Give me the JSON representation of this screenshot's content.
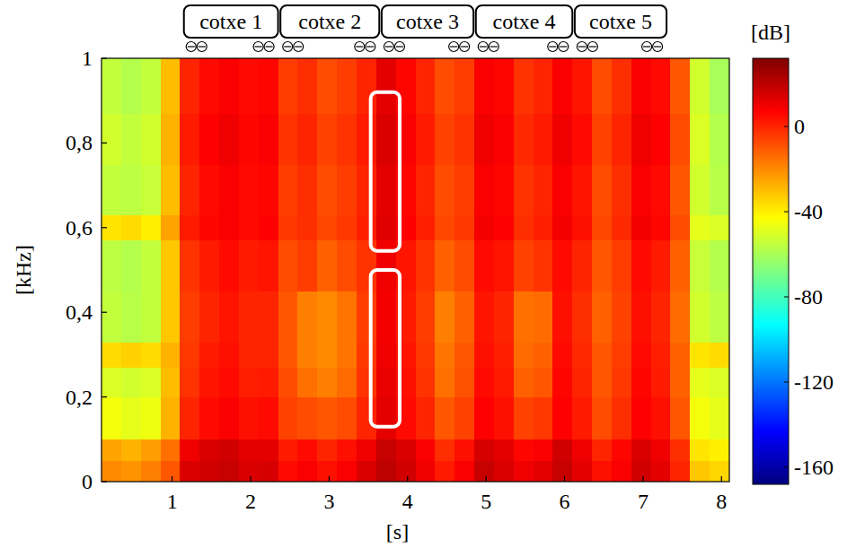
{
  "chart_data": {
    "type": "heatmap",
    "x_label": "[s]",
    "y_label": "[kHz]",
    "xlim": [
      0.1,
      8.1
    ],
    "ylim": [
      0,
      1
    ],
    "xticks": [
      1,
      2,
      3,
      4,
      5,
      6,
      7,
      8
    ],
    "yticks": [
      0,
      {
        "value": 0.2,
        "label": "0,2"
      },
      {
        "value": 0.4,
        "label": "0,4"
      },
      {
        "value": 0.6,
        "label": "0,6"
      },
      {
        "value": 0.8,
        "label": "0,8"
      },
      1
    ],
    "x_edges": [
      0.1,
      0.35,
      0.6,
      0.85,
      1.1,
      1.35,
      1.6,
      1.85,
      2.1,
      2.35,
      2.6,
      2.85,
      3.1,
      3.35,
      3.6,
      3.85,
      4.1,
      4.35,
      4.6,
      4.85,
      5.1,
      5.35,
      5.6,
      5.85,
      6.1,
      6.35,
      6.6,
      6.85,
      7.1,
      7.35,
      7.6,
      7.85,
      8.1
    ],
    "y_edges": [
      0,
      0.05,
      0.1,
      0.2,
      0.27,
      0.33,
      0.45,
      0.57,
      0.63,
      0.75,
      0.87,
      1.0
    ],
    "cells": [
      [
        -20,
        -22,
        -18,
        -10,
        14,
        16,
        18,
        14,
        15,
        5,
        8,
        4,
        8,
        14,
        20,
        16,
        10,
        2,
        8,
        18,
        14,
        10,
        12,
        18,
        12,
        4,
        8,
        16,
        12,
        0,
        -32,
        -35
      ],
      [
        -25,
        -28,
        -24,
        -15,
        10,
        14,
        16,
        12,
        12,
        2,
        5,
        0,
        4,
        10,
        18,
        14,
        8,
        -2,
        4,
        15,
        12,
        6,
        8,
        16,
        10,
        0,
        6,
        14,
        10,
        -2,
        -38,
        -40
      ],
      [
        -45,
        -48,
        -46,
        -28,
        0,
        5,
        8,
        4,
        5,
        -6,
        -8,
        -10,
        -8,
        0,
        12,
        5,
        0,
        -10,
        -6,
        7,
        4,
        -6,
        -4,
        7,
        2,
        -8,
        -2,
        7,
        4,
        -10,
        -45,
        -48
      ],
      [
        -50,
        -52,
        -50,
        -30,
        -3,
        3,
        5,
        1,
        2,
        -8,
        -15,
        -18,
        -14,
        -3,
        11,
        4,
        -3,
        -15,
        -9,
        5,
        2,
        -12,
        -10,
        6,
        0,
        -10,
        -4,
        6,
        2,
        -12,
        -48,
        -50
      ],
      [
        -36,
        -34,
        -36,
        -28,
        -4,
        2,
        4,
        0,
        0,
        -10,
        -18,
        -20,
        -16,
        -4,
        10,
        3,
        -4,
        -16,
        -10,
        4,
        1,
        -14,
        -12,
        5,
        -1,
        -10,
        -5,
        5,
        1,
        -12,
        -38,
        -36
      ],
      [
        -55,
        -57,
        -55,
        -32,
        -5,
        0,
        3,
        0,
        0,
        -10,
        -18,
        -20,
        -16,
        -5,
        9,
        2,
        -5,
        -18,
        -12,
        3,
        0,
        -15,
        -14,
        4,
        -2,
        -12,
        -6,
        4,
        0,
        -14,
        -52,
        -56
      ],
      [
        -56,
        -58,
        -55,
        -32,
        -3,
        2,
        5,
        2,
        3,
        -8,
        -5,
        -12,
        -8,
        -3,
        10,
        3,
        -3,
        -12,
        -8,
        5,
        3,
        -6,
        -3,
        5,
        0,
        -10,
        -5,
        5,
        2,
        -12,
        -54,
        -58
      ],
      [
        -38,
        -36,
        -40,
        -25,
        2,
        6,
        8,
        5,
        7,
        -4,
        -2,
        -7,
        -4,
        1,
        13,
        7,
        1,
        -7,
        -4,
        9,
        7,
        -2,
        1,
        9,
        4,
        -7,
        -1,
        9,
        6,
        -8,
        -48,
        -50
      ],
      [
        -55,
        -56,
        -54,
        -30,
        0,
        5,
        8,
        5,
        6,
        -5,
        -2,
        -8,
        -5,
        0,
        12,
        6,
        0,
        -8,
        -5,
        8,
        6,
        -3,
        0,
        8,
        3,
        -8,
        -2,
        8,
        5,
        -10,
        -52,
        -57
      ],
      [
        -52,
        -55,
        -52,
        -28,
        2,
        7,
        10,
        6,
        8,
        -3,
        0,
        -6,
        -3,
        2,
        14,
        8,
        2,
        -6,
        -3,
        10,
        8,
        -1,
        2,
        10,
        5,
        -6,
        0,
        10,
        7,
        -8,
        -50,
        -58
      ],
      [
        -55,
        -58,
        -55,
        -30,
        0,
        5,
        8,
        5,
        6,
        -5,
        -2,
        -8,
        -5,
        0,
        12,
        6,
        0,
        -8,
        -5,
        8,
        6,
        -3,
        0,
        8,
        3,
        -8,
        -2,
        8,
        5,
        -10,
        -52,
        -60
      ]
    ],
    "colorbar": {
      "label": "[dB]",
      "lim": [
        -168,
        32
      ],
      "ticks": [
        0,
        -40,
        -80,
        -120,
        -160
      ]
    },
    "annotations": [
      {
        "text": "cotxe 1",
        "x": [
          1.15,
          2.35
        ]
      },
      {
        "text": "cotxe 2",
        "x": [
          2.38,
          3.64
        ]
      },
      {
        "text": "cotxe 3",
        "x": [
          3.67,
          4.84
        ]
      },
      {
        "text": "cotxe 4",
        "x": [
          4.87,
          6.1
        ]
      },
      {
        "text": "cotxe 5",
        "x": [
          6.13,
          7.3
        ]
      }
    ],
    "highlights": [
      {
        "x": [
          3.53,
          3.9
        ],
        "y": [
          0.545,
          0.92
        ]
      },
      {
        "x": [
          3.53,
          3.9
        ],
        "y": [
          0.13,
          0.5
        ]
      }
    ]
  }
}
